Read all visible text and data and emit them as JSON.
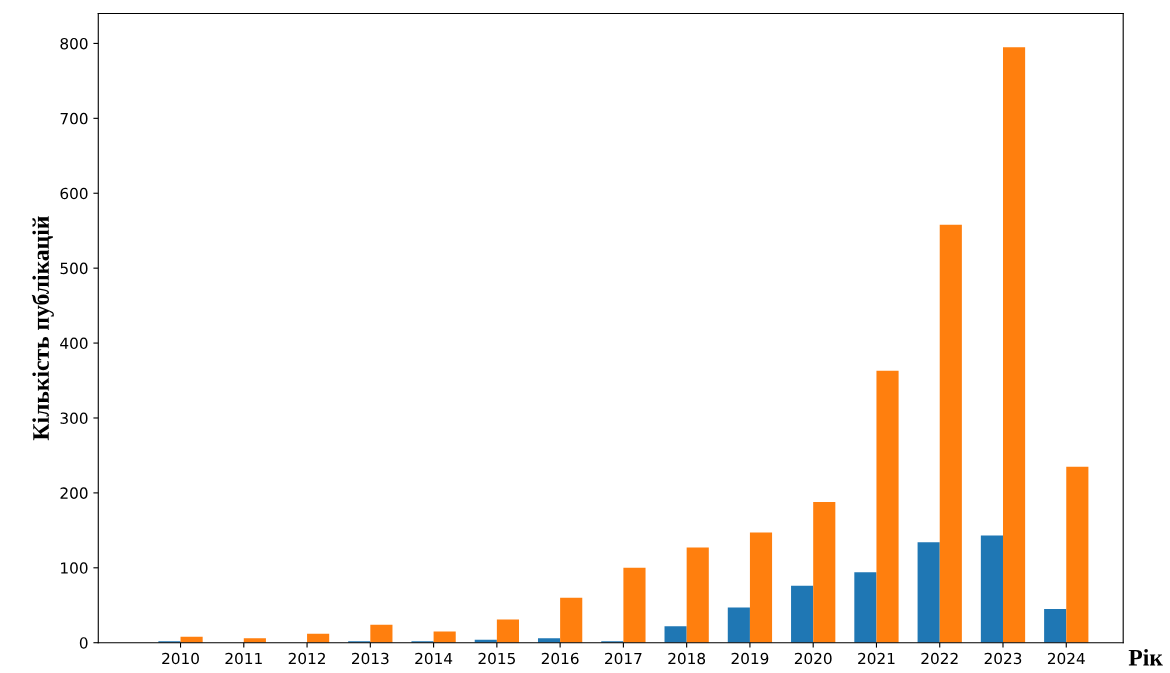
{
  "chart_data": {
    "type": "bar",
    "xlabel": "Рік",
    "ylabel": "Кількість публікацій",
    "categories": [
      "2010",
      "2011",
      "2012",
      "2013",
      "2014",
      "2015",
      "2016",
      "2017",
      "2018",
      "2019",
      "2020",
      "2021",
      "2022",
      "2023",
      "2024"
    ],
    "series": [
      {
        "color": "#1f77b4",
        "values": [
          2,
          0,
          0,
          2,
          2,
          4,
          6,
          2,
          22,
          47,
          76,
          94,
          134,
          143,
          45
        ]
      },
      {
        "color": "#ff7f0e",
        "values": [
          8,
          6,
          12,
          24,
          15,
          31,
          60,
          100,
          127,
          147,
          188,
          363,
          558,
          795,
          235
        ]
      }
    ],
    "ylim": [
      0,
      840
    ],
    "yticks": [
      0,
      100,
      200,
      300,
      400,
      500,
      600,
      700,
      800
    ],
    "grid": false,
    "legend": false
  }
}
